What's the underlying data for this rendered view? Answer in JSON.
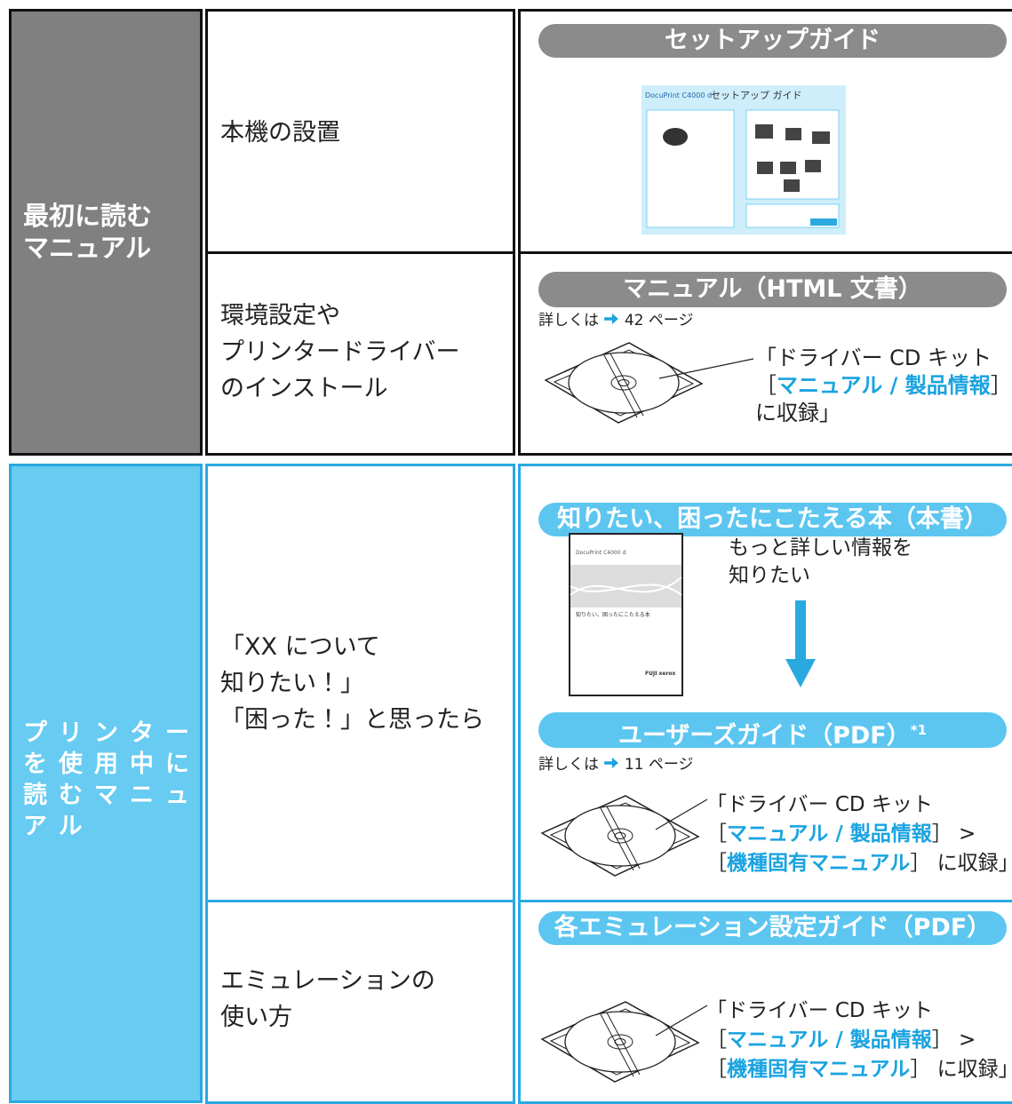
{
  "sections": [
    {
      "label": [
        "最初に読む",
        "マニュアル"
      ],
      "rows": [
        {
          "task": [
            "本機の設置"
          ],
          "manual": "セットアップガイド",
          "thumbnail": {
            "model": "DocuPrint C4000 d",
            "title": "セットアップ ガイド"
          }
        },
        {
          "task": [
            "環境設定や",
            "プリンタードライバー",
            "のインストール"
          ],
          "manual": "マニュアル（HTML 文書）",
          "reference": {
            "prefix": "詳しくは",
            "page": "42 ページ"
          },
          "location": [
            [
              "「ドライバー CD キット"
            ],
            [
              "［",
              "マニュアル / 製品情報",
              "］"
            ],
            [
              "に収録」"
            ]
          ]
        }
      ]
    },
    {
      "label": [
        "プリンター",
        "を使用中に",
        "読むマニュ",
        "アル"
      ],
      "rows": [
        {
          "task": [
            "「XX について",
            "知りたい！」",
            "「困った！」と思ったら"
          ],
          "manual": "知りたい、困ったにこたえる本（本書）",
          "cover": {
            "model": "DocuPrint C4000 d",
            "title": "知りたい、困ったにこたえる本",
            "brand": "FUJI xerox"
          },
          "note": [
            "もっと詳しい情報を",
            "知りたい"
          ],
          "next_manual": {
            "name": "ユーザーズガイド（PDF）",
            "footnote": "*1"
          },
          "reference": {
            "prefix": "詳しくは",
            "page": "11 ページ"
          },
          "location": [
            [
              "「ドライバー CD キット"
            ],
            [
              "［",
              "マニュアル / 製品情報",
              "］ >"
            ],
            [
              "［",
              "機種固有マニュアル",
              "］ に収録」"
            ]
          ]
        },
        {
          "task": [
            "エミュレーションの",
            "使い方"
          ],
          "manual": "各エミュレーション設定ガイド（PDF）",
          "location": [
            [
              "「ドライバー CD キット"
            ],
            [
              "［",
              "マニュアル / 製品情報",
              "］ >"
            ],
            [
              "［",
              "機種固有マニュアル",
              "］ に収録」"
            ]
          ]
        }
      ]
    }
  ]
}
